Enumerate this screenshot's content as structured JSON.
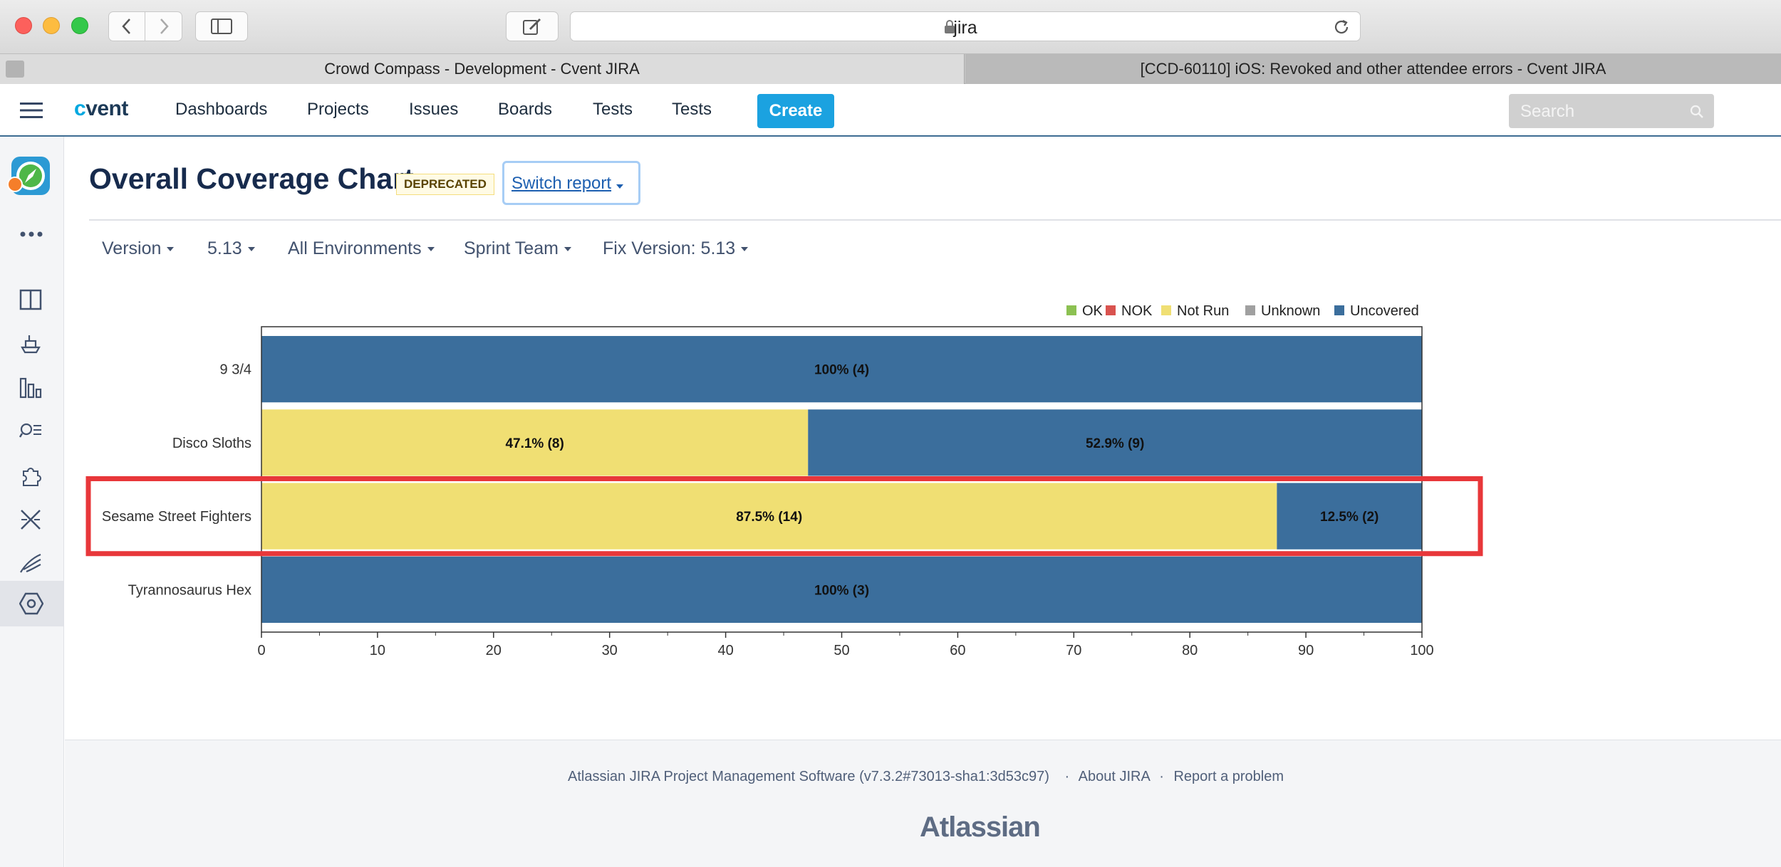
{
  "browser": {
    "url": "jira",
    "tabs": [
      "Crowd Compass - Development - Cvent JIRA",
      "[CCD-60110] iOS: Revoked and other attendee errors - Cvent JIRA"
    ]
  },
  "header": {
    "logo": "cvent",
    "nav": [
      "Dashboards",
      "Projects",
      "Issues",
      "Boards",
      "Tests",
      "Tests"
    ],
    "create": "Create",
    "search_placeholder": "Search"
  },
  "page": {
    "title": "Overall Coverage Chart",
    "badge": "DEPRECATED",
    "switch_report": "Switch report",
    "filters": [
      "Version",
      "5.13",
      "All Environments",
      "Sprint Team",
      "Fix Version: 5.13"
    ]
  },
  "chart_data": {
    "type": "bar",
    "orientation": "horizontal",
    "stacked": true,
    "categories": [
      "9 3/4",
      "Disco Sloths",
      "Sesame Street Fighters",
      "Tyrannosaurus Hex"
    ],
    "legend": [
      "OK",
      "NOK",
      "Not Run",
      "Unknown",
      "Uncovered"
    ],
    "legend_position": "top-right",
    "colors": {
      "OK": "#8cc152",
      "NOK": "#d9534f",
      "Not Run": "#f0df73",
      "Unknown": "#a0a0a0",
      "Uncovered": "#3b6e9c"
    },
    "series": [
      {
        "name": "Not Run",
        "values": [
          0,
          47.1,
          87.5,
          0
        ],
        "labels": [
          "",
          "47.1% (8)",
          "87.5% (14)",
          ""
        ]
      },
      {
        "name": "Uncovered",
        "values": [
          100,
          52.9,
          12.5,
          100
        ],
        "labels": [
          "100% (4)",
          "52.9% (9)",
          "12.5% (2)",
          "100% (3)"
        ]
      }
    ],
    "xlim": [
      0,
      100
    ],
    "xticks": [
      "0",
      "10",
      "20",
      "30",
      "40",
      "50",
      "60",
      "70",
      "80",
      "90",
      "100"
    ],
    "highlighted_category": "Sesame Street Fighters",
    "highlight_color": "#e8373a"
  },
  "footer": {
    "software": "Atlassian JIRA Project Management Software (v7.3.2#73013-sha1:3d53c97)",
    "separator": "·",
    "about": "About JIRA",
    "report": "Report a problem",
    "logo": "Atlassian"
  }
}
